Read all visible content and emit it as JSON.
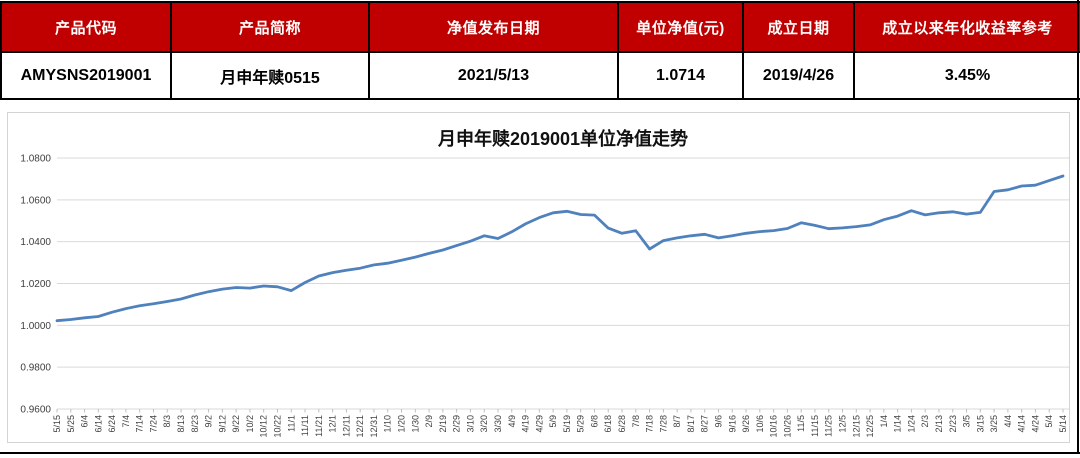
{
  "table": {
    "header_bg": "#C00000",
    "header_text_color": "#FFFFFF",
    "columns": [
      {
        "header": "产品代码",
        "value": "AMYSNS2019001"
      },
      {
        "header": "产品简称",
        "value": "月申年赎0515"
      },
      {
        "header": "净值发布日期",
        "value": "2021/5/13"
      },
      {
        "header": "单位净值(元)",
        "value": "1.0714"
      },
      {
        "header": "成立日期",
        "value": "2019/4/26"
      },
      {
        "header": "成立以来年化收益率参考",
        "value": "3.45%"
      }
    ]
  },
  "chart_data": {
    "type": "line",
    "title": "月申年赎2019001单位净值走势",
    "ylabel": "",
    "xlabel": "",
    "ylim": [
      0.96,
      1.08
    ],
    "ytick_labels": [
      "1.0800",
      "1.0600",
      "1.0400",
      "1.0200",
      "1.0000",
      "0.9800",
      "0.9600"
    ],
    "grid": "horizontal",
    "legend": "none",
    "line_color": "#4F81BD",
    "gridline_color": "#D9D9D9",
    "tick_color": "#BFBFBF",
    "axis_text_color": "#404040",
    "x": [
      "5/15",
      "5/25",
      "6/4",
      "6/14",
      "6/24",
      "7/4",
      "7/14",
      "7/24",
      "8/3",
      "8/13",
      "8/23",
      "9/2",
      "9/12",
      "9/22",
      "10/2",
      "10/12",
      "10/22",
      "11/1",
      "11/11",
      "11/21",
      "12/1",
      "12/11",
      "12/21",
      "12/31",
      "1/10",
      "1/20",
      "1/30",
      "2/9",
      "2/19",
      "2/29",
      "3/10",
      "3/20",
      "3/30",
      "4/9",
      "4/19",
      "4/29",
      "5/9",
      "5/19",
      "5/29",
      "6/8",
      "6/18",
      "6/28",
      "7/8",
      "7/18",
      "7/28",
      "8/7",
      "8/17",
      "8/27",
      "9/6",
      "9/16",
      "9/26",
      "10/6",
      "10/16",
      "10/26",
      "11/5",
      "11/15",
      "11/25",
      "12/5",
      "12/15",
      "12/25",
      "1/4",
      "1/14",
      "1/24",
      "2/3",
      "2/13",
      "2/23",
      "3/5",
      "3/15",
      "3/25",
      "4/4",
      "4/14",
      "4/24",
      "5/4",
      "5/14"
    ],
    "series": [
      {
        "name": "单位净值",
        "values": [
          1.0022,
          1.0028,
          1.0036,
          1.0042,
          1.0063,
          1.008,
          1.0094,
          1.0103,
          1.0114,
          1.0126,
          1.0145,
          1.0161,
          1.0173,
          1.0181,
          1.0178,
          1.0188,
          1.0184,
          1.0166,
          1.0205,
          1.0236,
          1.0252,
          1.0263,
          1.0273,
          1.0289,
          1.0297,
          1.0311,
          1.0326,
          1.0344,
          1.036,
          1.0381,
          1.0402,
          1.0428,
          1.0415,
          1.0447,
          1.0485,
          1.0515,
          1.0538,
          1.0545,
          1.053,
          1.0527,
          1.0465,
          1.044,
          1.0452,
          1.0365,
          1.0405,
          1.0418,
          1.0428,
          1.0435,
          1.0418,
          1.0428,
          1.044,
          1.0448,
          1.0453,
          1.0463,
          1.049,
          1.0478,
          1.0462,
          1.0466,
          1.0472,
          1.048,
          1.0505,
          1.0522,
          1.0548,
          1.0528,
          1.0538,
          1.0543,
          1.0532,
          1.054,
          1.064,
          1.0648,
          1.0666,
          1.067,
          1.0692,
          1.0714
        ]
      }
    ]
  }
}
